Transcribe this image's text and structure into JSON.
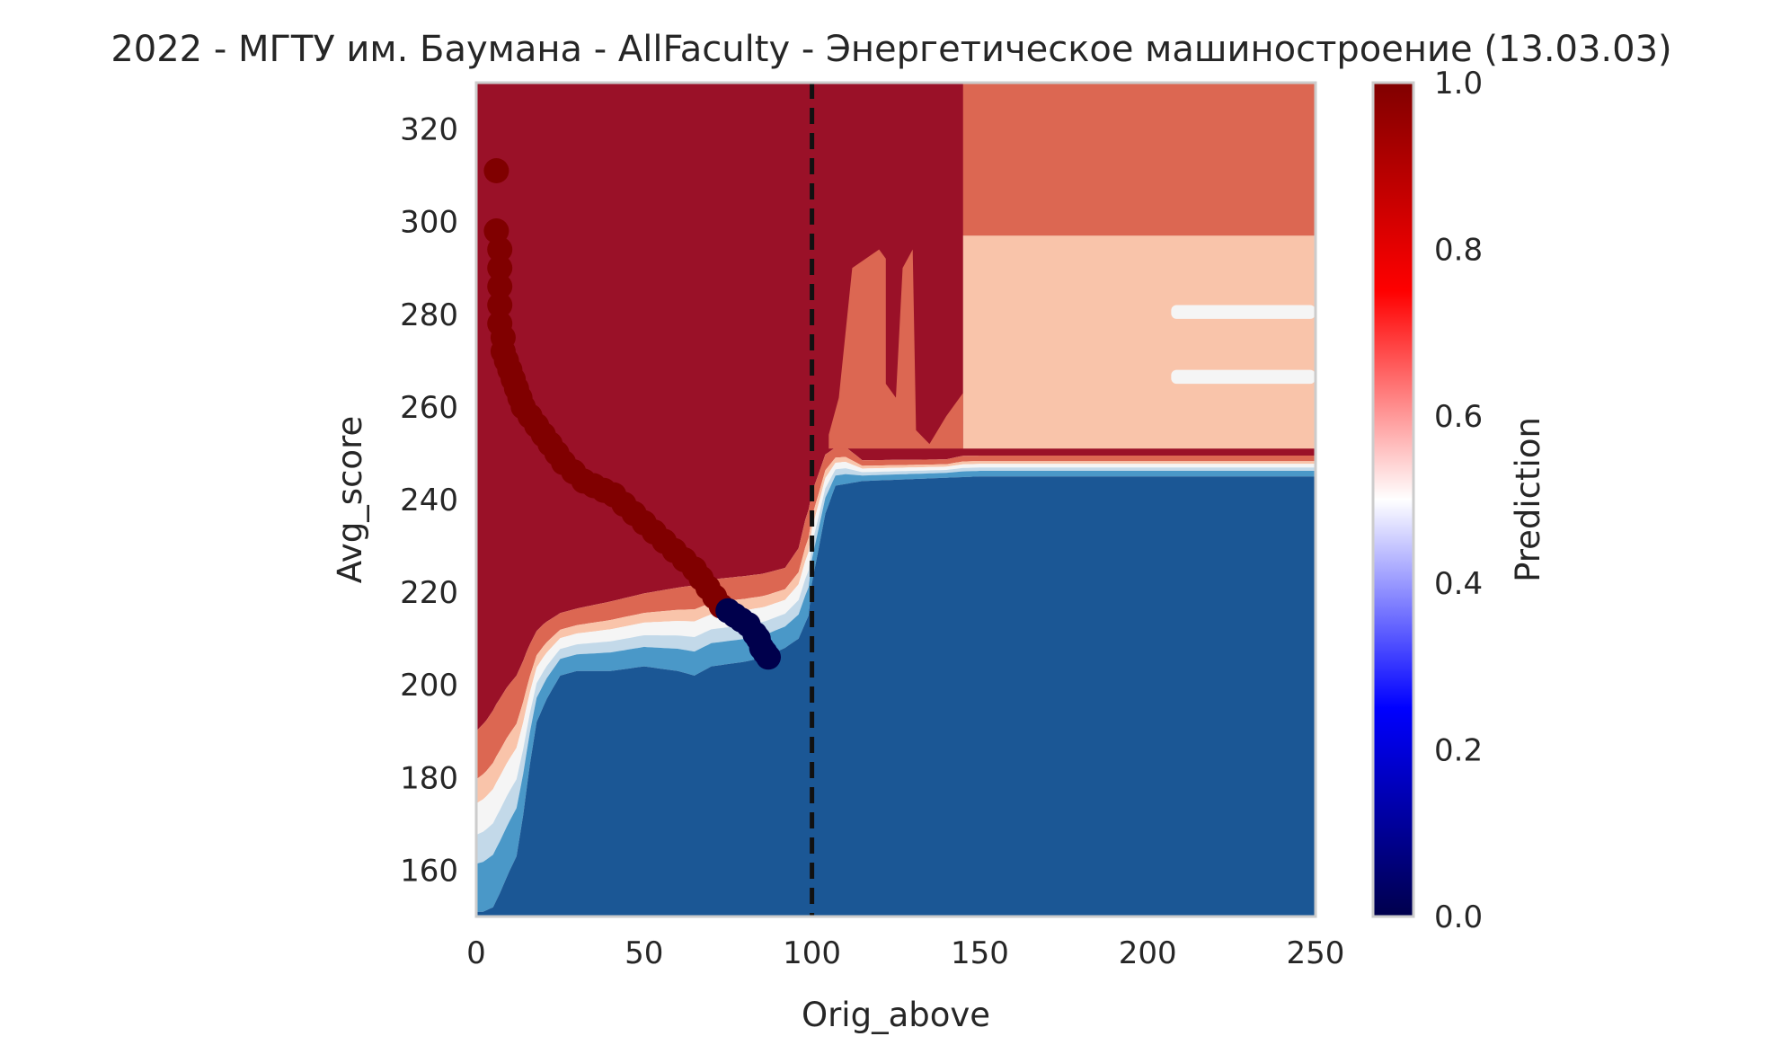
{
  "chart_data": {
    "type": "heatmap",
    "title": "2022 - МГТУ им. Баумана - AllFaculty - Энергетическое машиностроение (13.03.03)",
    "xlabel": "Orig_above",
    "ylabel": "Avg_score",
    "xlim": [
      0,
      250
    ],
    "ylim": [
      150,
      330
    ],
    "xticks": [
      "0",
      "50",
      "100",
      "150",
      "200",
      "250"
    ],
    "yticks": [
      "160",
      "180",
      "200",
      "220",
      "240",
      "260",
      "280",
      "300",
      "320"
    ],
    "threshold_x": 100,
    "grid": false,
    "colorbar": {
      "label": "Prediction",
      "range": [
        0,
        1
      ],
      "ticks": [
        "0.0",
        "0.2",
        "0.4",
        "0.6",
        "0.8",
        "1.0"
      ],
      "colormap": "seismic"
    },
    "contour_levels": [
      {
        "level": 0.9,
        "color": "#9a1128"
      },
      {
        "level": 0.7,
        "color": "#dc6752"
      },
      {
        "level": 0.6,
        "color": "#f9c4aa"
      },
      {
        "level": 0.5,
        "color": "#f5f5f5"
      },
      {
        "level": 0.4,
        "color": "#c3d9e9"
      },
      {
        "level": 0.3,
        "color": "#4a98c8"
      },
      {
        "level": 0.1,
        "color": "#1b5795"
      }
    ],
    "boundary_upper": [
      [
        0,
        203
      ],
      [
        3,
        206
      ],
      [
        6,
        210
      ],
      [
        9,
        213
      ],
      [
        12,
        215
      ],
      [
        15,
        217
      ],
      [
        20,
        219
      ],
      [
        30,
        221
      ],
      [
        40,
        223
      ],
      [
        50,
        225
      ],
      [
        60,
        227
      ],
      [
        70,
        229
      ],
      [
        85,
        230
      ],
      [
        92,
        231
      ],
      [
        96,
        236
      ],
      [
        98,
        243
      ],
      [
        100,
        248
      ],
      [
        104,
        254
      ],
      [
        110,
        254
      ],
      [
        115,
        250
      ],
      [
        140,
        250
      ],
      [
        145,
        251
      ],
      [
        250,
        251
      ]
    ],
    "boundary_lower": [
      [
        0,
        151
      ],
      [
        2,
        151
      ],
      [
        5,
        152
      ],
      [
        7,
        155
      ],
      [
        10,
        160
      ],
      [
        12,
        163
      ],
      [
        14,
        172
      ],
      [
        16,
        183
      ],
      [
        18,
        192
      ],
      [
        21,
        197
      ],
      [
        25,
        202
      ],
      [
        30,
        203
      ],
      [
        40,
        203
      ],
      [
        50,
        204
      ],
      [
        60,
        203
      ],
      [
        65,
        202
      ],
      [
        70,
        204
      ],
      [
        80,
        205
      ],
      [
        86,
        206
      ],
      [
        92,
        208
      ],
      [
        96,
        210
      ],
      [
        99,
        215
      ],
      [
        100,
        222
      ],
      [
        104,
        237
      ],
      [
        107,
        243
      ],
      [
        115,
        244
      ],
      [
        150,
        245
      ],
      [
        250,
        245
      ]
    ],
    "scatter": {
      "name": "observed",
      "points": [
        [
          6,
          311
        ],
        [
          6,
          298
        ],
        [
          7,
          294
        ],
        [
          7,
          290
        ],
        [
          7,
          286
        ],
        [
          7,
          282
        ],
        [
          7,
          278
        ],
        [
          8,
          275
        ],
        [
          8,
          272
        ],
        [
          9,
          270
        ],
        [
          10,
          268
        ],
        [
          11,
          266
        ],
        [
          12,
          264
        ],
        [
          13,
          262
        ],
        [
          14,
          260
        ],
        [
          16,
          258
        ],
        [
          18,
          256
        ],
        [
          20,
          254
        ],
        [
          22,
          252
        ],
        [
          24,
          250
        ],
        [
          26,
          248
        ],
        [
          29,
          246
        ],
        [
          32,
          244
        ],
        [
          35,
          243
        ],
        [
          38,
          242
        ],
        [
          41,
          241
        ],
        [
          44,
          239
        ],
        [
          47,
          237
        ],
        [
          50,
          235
        ],
        [
          53,
          233
        ],
        [
          56,
          231
        ],
        [
          59,
          229
        ],
        [
          62,
          227
        ],
        [
          65,
          225
        ],
        [
          67,
          223
        ],
        [
          69,
          221
        ],
        [
          71,
          219
        ],
        [
          73,
          217
        ],
        [
          75,
          216
        ],
        [
          77,
          215
        ],
        [
          79,
          214
        ],
        [
          81,
          213
        ],
        [
          83,
          211
        ],
        [
          84,
          210
        ],
        [
          85,
          208
        ],
        [
          86,
          207
        ],
        [
          87,
          206
        ]
      ],
      "threshold_class": 75
    }
  }
}
